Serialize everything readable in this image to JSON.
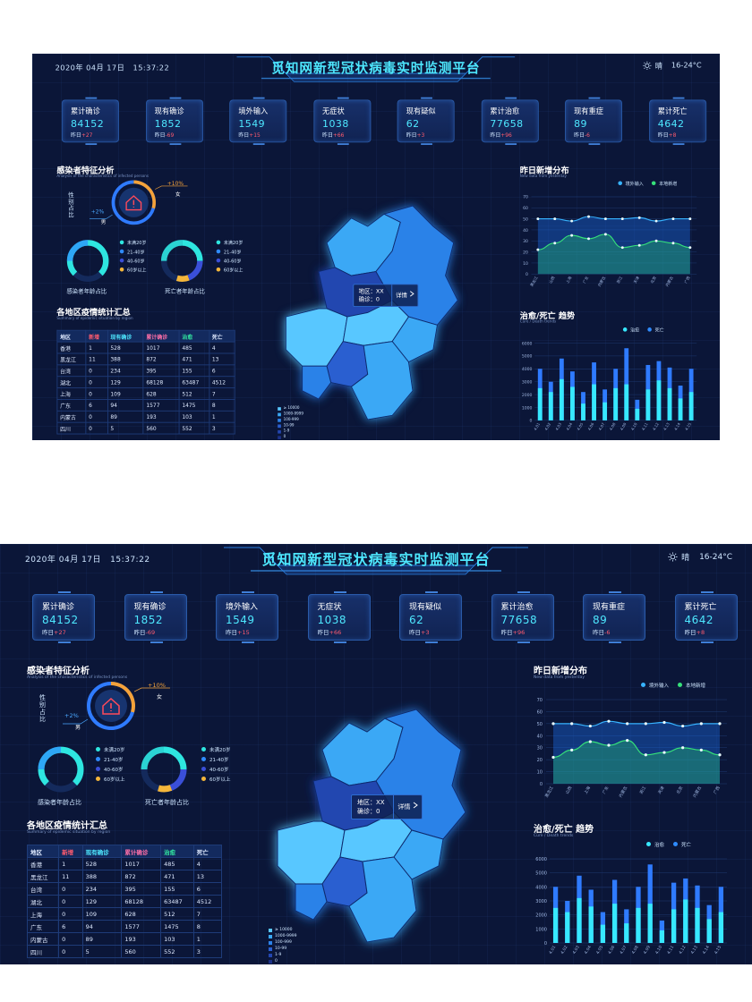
{
  "header": {
    "date": "2020年 04月 17日",
    "time": "15:37:22",
    "title": "觅知网新型冠状病毒实时监测平台",
    "weather": "晴",
    "temperature": "16-24°C"
  },
  "stats": [
    {
      "label": "累计确诊",
      "value": "84152",
      "delta_label": "昨日",
      "delta": "+27"
    },
    {
      "label": "现有确诊",
      "value": "1852",
      "delta_label": "昨日",
      "delta": "-69"
    },
    {
      "label": "境外输入",
      "value": "1549",
      "delta_label": "昨日",
      "delta": "+15"
    },
    {
      "label": "无症状",
      "value": "1038",
      "delta_label": "昨日",
      "delta": "+66"
    },
    {
      "label": "现有疑似",
      "value": "62",
      "delta_label": "昨日",
      "delta": "+3"
    },
    {
      "label": "累计治愈",
      "value": "77658",
      "delta_label": "昨日",
      "delta": "+96"
    },
    {
      "label": "现有重症",
      "value": "89",
      "delta_label": "昨日",
      "delta": "-6"
    },
    {
      "label": "累计死亡",
      "value": "4642",
      "delta_label": "昨日",
      "delta": "+8"
    }
  ],
  "features": {
    "title": "感染者特征分析",
    "subtitle": "Analysis of the characteristics of infected persons",
    "gender_label": "性别占比",
    "female_pct": "+10%",
    "female_label": "女",
    "male_pct": "+2%",
    "male_label": "男",
    "ring1_caption": "感染者年龄占比",
    "ring2_caption": "死亡者年龄占比",
    "age_legend": [
      {
        "label": "未满20岁",
        "color": "#2ee6e0"
      },
      {
        "label": "21-40岁",
        "color": "#2f8bff"
      },
      {
        "label": "40-60岁",
        "color": "#3a4fd8"
      },
      {
        "label": "60岁以上",
        "color": "#f4b63a"
      }
    ]
  },
  "region_table": {
    "title": "各地区疫情统计汇总",
    "subtitle": "Summary of epidemic situation by region",
    "headers": [
      "地区",
      "新增",
      "现有确诊",
      "累计确诊",
      "治愈",
      "死亡"
    ],
    "rows": [
      [
        "香港",
        "1",
        "528",
        "1017",
        "485",
        "4"
      ],
      [
        "黑龙江",
        "11",
        "388",
        "872",
        "471",
        "13"
      ],
      [
        "台湾",
        "0",
        "234",
        "395",
        "155",
        "6"
      ],
      [
        "湖北",
        "0",
        "129",
        "68128",
        "63487",
        "4512"
      ],
      [
        "上海",
        "0",
        "109",
        "628",
        "512",
        "7"
      ],
      [
        "广东",
        "6",
        "94",
        "1577",
        "1475",
        "8"
      ],
      [
        "内蒙古",
        "0",
        "89",
        "193",
        "103",
        "1"
      ],
      [
        "四川",
        "0",
        "5",
        "560",
        "552",
        "3"
      ]
    ]
  },
  "map": {
    "tooltip_region": "地区：XX",
    "tooltip_count": "确诊：0",
    "detail_button": "详情",
    "legend": [
      {
        "label": "≥ 10000",
        "color": "#59c7ff"
      },
      {
        "label": "1000-9999",
        "color": "#3aa8f5"
      },
      {
        "label": "100-999",
        "color": "#2c82e8"
      },
      {
        "label": "10-99",
        "color": "#2a5fd0"
      },
      {
        "label": "1-9",
        "color": "#2346b0"
      },
      {
        "label": "0",
        "color": "#1c3188"
      }
    ]
  },
  "line_chart": {
    "title": "昨日新增分布",
    "subtitle": "New data from yesterday",
    "legend": [
      {
        "label": "境外输入",
        "color": "#37b3ff"
      },
      {
        "label": "本地新增",
        "color": "#36e07a"
      }
    ]
  },
  "bar_chart": {
    "title": "治愈/死亡 趋势",
    "subtitle": "Cure / Death trends",
    "legend": [
      {
        "label": "治愈",
        "color": "#37e8ff"
      },
      {
        "label": "死亡",
        "color": "#2f8bff"
      }
    ]
  },
  "colors": {
    "accent": "#4ee8ff",
    "bg": "#0b1638",
    "delta": "#ff5b6e"
  },
  "chart_data": [
    {
      "type": "line",
      "categories": [
        "黑龙江",
        "山西",
        "上海",
        "广东",
        "内蒙古",
        "浙江",
        "天津",
        "北京",
        "内蒙古",
        "广西"
      ],
      "series": [
        {
          "name": "境外输入",
          "values": [
            50,
            50,
            48,
            52,
            50,
            50,
            51,
            48,
            50,
            50
          ]
        },
        {
          "name": "本地新增",
          "values": [
            22,
            28,
            35,
            32,
            36,
            24,
            26,
            30,
            28,
            24
          ]
        }
      ],
      "ylim": [
        0,
        70
      ],
      "yticks": [
        0,
        10,
        20,
        30,
        40,
        50,
        60,
        70
      ],
      "grid": true,
      "legend": "top-right"
    },
    {
      "type": "bar",
      "categories": [
        "4.01",
        "4.02",
        "4.03",
        "4.04",
        "4.05",
        "4.06",
        "4.07",
        "4.08",
        "4.09",
        "4.10",
        "4.11",
        "4.12",
        "4.13",
        "4.14",
        "4.15"
      ],
      "series": [
        {
          "name": "治愈",
          "values": [
            2500,
            2200,
            3200,
            2600,
            1300,
            2800,
            1400,
            2500,
            2800,
            900,
            2400,
            3100,
            2500,
            1700,
            2200
          ]
        },
        {
          "name": "死亡",
          "values": [
            4000,
            3000,
            4800,
            3800,
            2200,
            4500,
            2400,
            4000,
            5600,
            1600,
            4300,
            4600,
            4100,
            2700,
            4000
          ]
        }
      ],
      "ylim": [
        0,
        6000
      ],
      "yticks": [
        0,
        1000,
        2000,
        3000,
        4000,
        5000,
        6000
      ],
      "grid": true,
      "legend": "top-right"
    }
  ]
}
